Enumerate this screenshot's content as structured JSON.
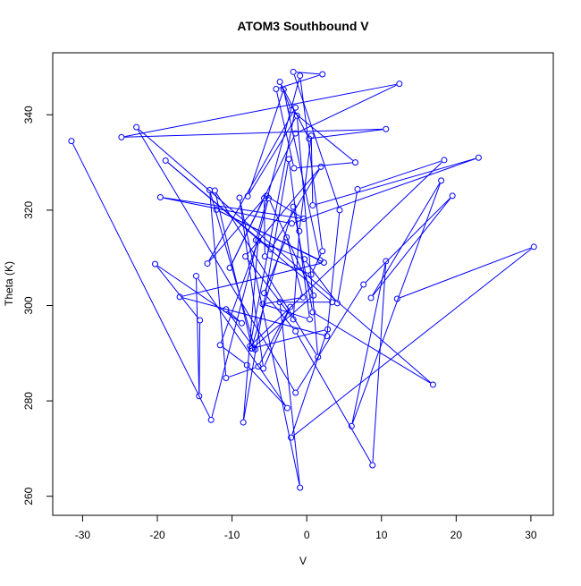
{
  "colors": {
    "series": "#0000ff",
    "axis": "#000000",
    "background": "#ffffff"
  },
  "chart_data": {
    "type": "line",
    "title": "ATOM3 Southbound V",
    "xlabel": "V",
    "ylabel": "Theta (K)",
    "xlim": [
      -34,
      33
    ],
    "ylim": [
      256,
      353
    ],
    "xticks": [
      -30,
      -20,
      -10,
      0,
      10,
      20,
      30
    ],
    "yticks": [
      260,
      280,
      300,
      320,
      340
    ],
    "xtick_labels": [
      "-30",
      "-20",
      "-10",
      "0",
      "10",
      "20",
      "30"
    ],
    "ytick_labels": [
      "260",
      "280",
      "300",
      "320",
      "340"
    ],
    "grid": false,
    "series": [
      {
        "marker": "open-circle",
        "points": [
          [
            -31.5,
            334.5
          ],
          [
            -12.8,
            276.0
          ],
          [
            -5.1,
            322.5
          ],
          [
            0.9,
            302.1
          ],
          [
            -7.3,
            291.0
          ],
          [
            -12.3,
            324.1
          ],
          [
            1.5,
            289.2
          ],
          [
            -1.3,
            339.8
          ],
          [
            -7.9,
            322.9
          ],
          [
            -3.1,
            345.3
          ],
          [
            1.8,
            309.5
          ],
          [
            -12.1,
            320.1
          ],
          [
            2.3,
            309.0
          ],
          [
            -17.0,
            301.8
          ],
          [
            2.7,
            293.6
          ],
          [
            4.4,
            320.0
          ],
          [
            -1.8,
            349.0
          ],
          [
            2.1,
            348.5
          ],
          [
            -4.1,
            345.4
          ],
          [
            -1.7,
            328.8
          ],
          [
            6.5,
            330.0
          ],
          [
            -2.1,
            341.0
          ],
          [
            -3.6,
            346.9
          ],
          [
            0.3,
            335.0
          ],
          [
            10.6,
            337.0
          ],
          [
            -24.8,
            335.3
          ],
          [
            12.4,
            346.5
          ],
          [
            -1.5,
            336.1
          ],
          [
            -10.3,
            307.9
          ],
          [
            -5.7,
            322.5
          ],
          [
            -5.6,
            310.3
          ],
          [
            0.6,
            306.5
          ],
          [
            2.1,
            311.4
          ],
          [
            -0.9,
            348.2
          ],
          [
            -6.8,
            313.7
          ],
          [
            -0.3,
            309.7
          ],
          [
            4.1,
            300.5
          ],
          [
            6.8,
            324.4
          ],
          [
            18.4,
            330.5
          ],
          [
            -7.6,
            291.5
          ],
          [
            -1.5,
            341.5
          ],
          [
            -13.3,
            308.8
          ],
          [
            -5.4,
            323.0
          ],
          [
            -0.4,
            318.2
          ],
          [
            -19.6,
            322.7
          ],
          [
            -2.0,
            317.2
          ],
          [
            23.0,
            331.0
          ],
          [
            0.8,
            321.0
          ],
          [
            0.6,
            335.6
          ],
          [
            -1.0,
            315.6
          ],
          [
            -1.8,
            297.1
          ],
          [
            -8.2,
            310.3
          ],
          [
            1.9,
            329.1
          ],
          [
            -4.8,
            311.8
          ],
          [
            -18.9,
            330.4
          ],
          [
            3.4,
            300.7
          ],
          [
            -3.6,
            300.7
          ],
          [
            -0.9,
            261.8
          ],
          [
            -9.0,
            322.6
          ],
          [
            -5.8,
            286.8
          ],
          [
            -2.2,
            299.7
          ],
          [
            -6.5,
            287.2
          ],
          [
            -10.8,
            284.8
          ],
          [
            -13.0,
            324.2
          ],
          [
            -6.9,
            290.8
          ],
          [
            -10.8,
            299.2
          ],
          [
            -8.7,
            296.3
          ],
          [
            -20.3,
            308.7
          ],
          [
            -14.3,
            296.9
          ],
          [
            -14.4,
            281.0
          ],
          [
            -14.8,
            306.2
          ],
          [
            -2.6,
            278.5
          ],
          [
            -8.0,
            287.5
          ],
          [
            -11.6,
            291.7
          ],
          [
            -6.5,
            313.6
          ],
          [
            -8.5,
            275.5
          ],
          [
            -2.4,
            330.7
          ],
          [
            0.4,
            297.1
          ],
          [
            -5.9,
            300.3
          ],
          [
            -0.5,
            301.7
          ],
          [
            -2.7,
            314.3
          ],
          [
            -5.7,
            302.6
          ],
          [
            -1.5,
            294.6
          ],
          [
            8.8,
            266.5
          ],
          [
            10.6,
            309.3
          ],
          [
            6.0,
            274.7
          ],
          [
            18.0,
            326.2
          ],
          [
            8.6,
            301.6
          ],
          [
            19.5,
            323.0
          ],
          [
            7.6,
            304.4
          ],
          [
            -1.5,
            281.7
          ],
          [
            -22.8,
            337.4
          ],
          [
            16.9,
            283.4
          ],
          [
            0.8,
            298.6
          ],
          [
            -1.8,
            320.7
          ],
          [
            -7.4,
            291.0
          ],
          [
            2.8,
            295.0
          ],
          [
            -2.1,
            272.3
          ],
          [
            30.4,
            312.3
          ],
          [
            12.1,
            301.4
          ]
        ]
      }
    ]
  }
}
